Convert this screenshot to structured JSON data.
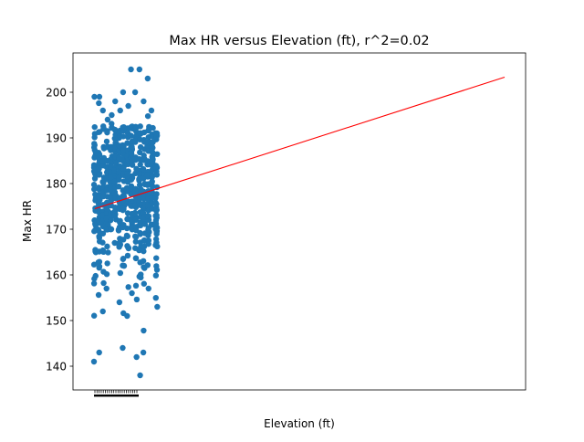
{
  "chart_data": {
    "type": "scatter",
    "title": "Max HR versus Elevation (ft), r^2=0.02",
    "xlabel": "Elevation (ft)",
    "ylabel": "Max HR",
    "ylim": [
      134.8,
      208.6
    ],
    "yticks": [
      140,
      150,
      160,
      170,
      180,
      190,
      200
    ],
    "xticks_visible": true,
    "grid": false,
    "colors": {
      "points": "#1f77b4",
      "fit_line": "#ff0000"
    },
    "fit_line": {
      "x": [
        0.0,
        1.0
      ],
      "y": [
        174.5,
        203.3
      ]
    },
    "point_columns": [
      {
        "x": 0.0,
        "y_min": 141,
        "y_max": 199
      },
      {
        "x": 0.01,
        "y_min": 143,
        "y_max": 199
      },
      {
        "x": 0.02,
        "y_min": 152,
        "y_max": 196
      },
      {
        "x": 0.03,
        "y_min": 157,
        "y_max": 194
      },
      {
        "x": 0.04,
        "y_min": 170,
        "y_max": 195
      },
      {
        "x": 0.05,
        "y_min": 167,
        "y_max": 198
      },
      {
        "x": 0.06,
        "y_min": 154,
        "y_max": 196
      },
      {
        "x": 0.07,
        "y_min": 144,
        "y_max": 200
      },
      {
        "x": 0.08,
        "y_min": 151,
        "y_max": 197
      },
      {
        "x": 0.09,
        "y_min": 156,
        "y_max": 205
      },
      {
        "x": 0.1,
        "y_min": 142,
        "y_max": 200
      },
      {
        "x": 0.11,
        "y_min": 138,
        "y_max": 205
      },
      {
        "x": 0.12,
        "y_min": 143,
        "y_max": 198
      },
      {
        "x": 0.13,
        "y_min": 157,
        "y_max": 203
      },
      {
        "x": 0.14,
        "y_min": 171,
        "y_max": 196
      },
      {
        "x": 0.15,
        "y_min": 153,
        "y_max": 191
      }
    ]
  }
}
